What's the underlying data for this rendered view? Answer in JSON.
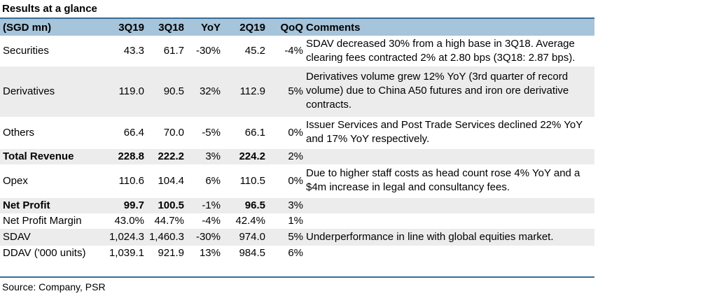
{
  "title": "Results at a glance",
  "headers": [
    "(SGD mn)",
    "3Q19",
    "3Q18",
    "YoY",
    "2Q19",
    "QoQ",
    "Comments"
  ],
  "rows": [
    {
      "label": "Securities",
      "v": [
        "43.3",
        "61.7",
        "-30%",
        "45.2",
        "-4%"
      ],
      "comment": "SDAV decreased 30% from a high base in 3Q18. Average clearing fees contracted 2% at 2.80 bps (3Q18: 2.87 bps)."
    },
    {
      "label": "Derivatives",
      "v": [
        "119.0",
        "90.5",
        "32%",
        "112.9",
        "5%"
      ],
      "comment": "Derivatives volume grew 12% YoY (3rd quarter of record volume) due to China A50 futures and iron ore derivative contracts."
    },
    {
      "label": "Others",
      "v": [
        "66.4",
        "70.0",
        "-5%",
        "66.1",
        "0%"
      ],
      "comment": "Issuer Services and Post Trade Services declined 22% YoY and 17% YoY respectively."
    },
    {
      "label": "Total Revenue",
      "v": [
        "228.8",
        "222.2",
        "3%",
        "224.2",
        "2%"
      ],
      "comment": ""
    },
    {
      "label": "Opex",
      "v": [
        "110.6",
        "104.4",
        "6%",
        "110.5",
        "0%"
      ],
      "comment": "Due to higher staff costs as head count rose 4% YoY and a $4m increase in legal and consultancy fees."
    },
    {
      "label": "Net Profit",
      "v": [
        "99.7",
        "100.5",
        "-1%",
        "96.5",
        "3%"
      ],
      "comment": ""
    },
    {
      "label": "Net Profit Margin",
      "v": [
        "43.0%",
        "44.7%",
        "-4%",
        "42.4%",
        "1%"
      ],
      "comment": ""
    },
    {
      "label": "SDAV",
      "v": [
        "1,024.3",
        "1,460.3",
        "-30%",
        "974.0",
        "5%"
      ],
      "comment": "Underperformance in line with global equities market."
    },
    {
      "label": "DDAV ('000 units)",
      "v": [
        "1,039.1",
        "921.9",
        "13%",
        "984.5",
        "6%"
      ],
      "comment": ""
    }
  ],
  "source": "Source: Company, PSR",
  "colors": {
    "header_bg": "#a6c4da",
    "rule": "#3a6d95",
    "shade": "#ececec"
  }
}
